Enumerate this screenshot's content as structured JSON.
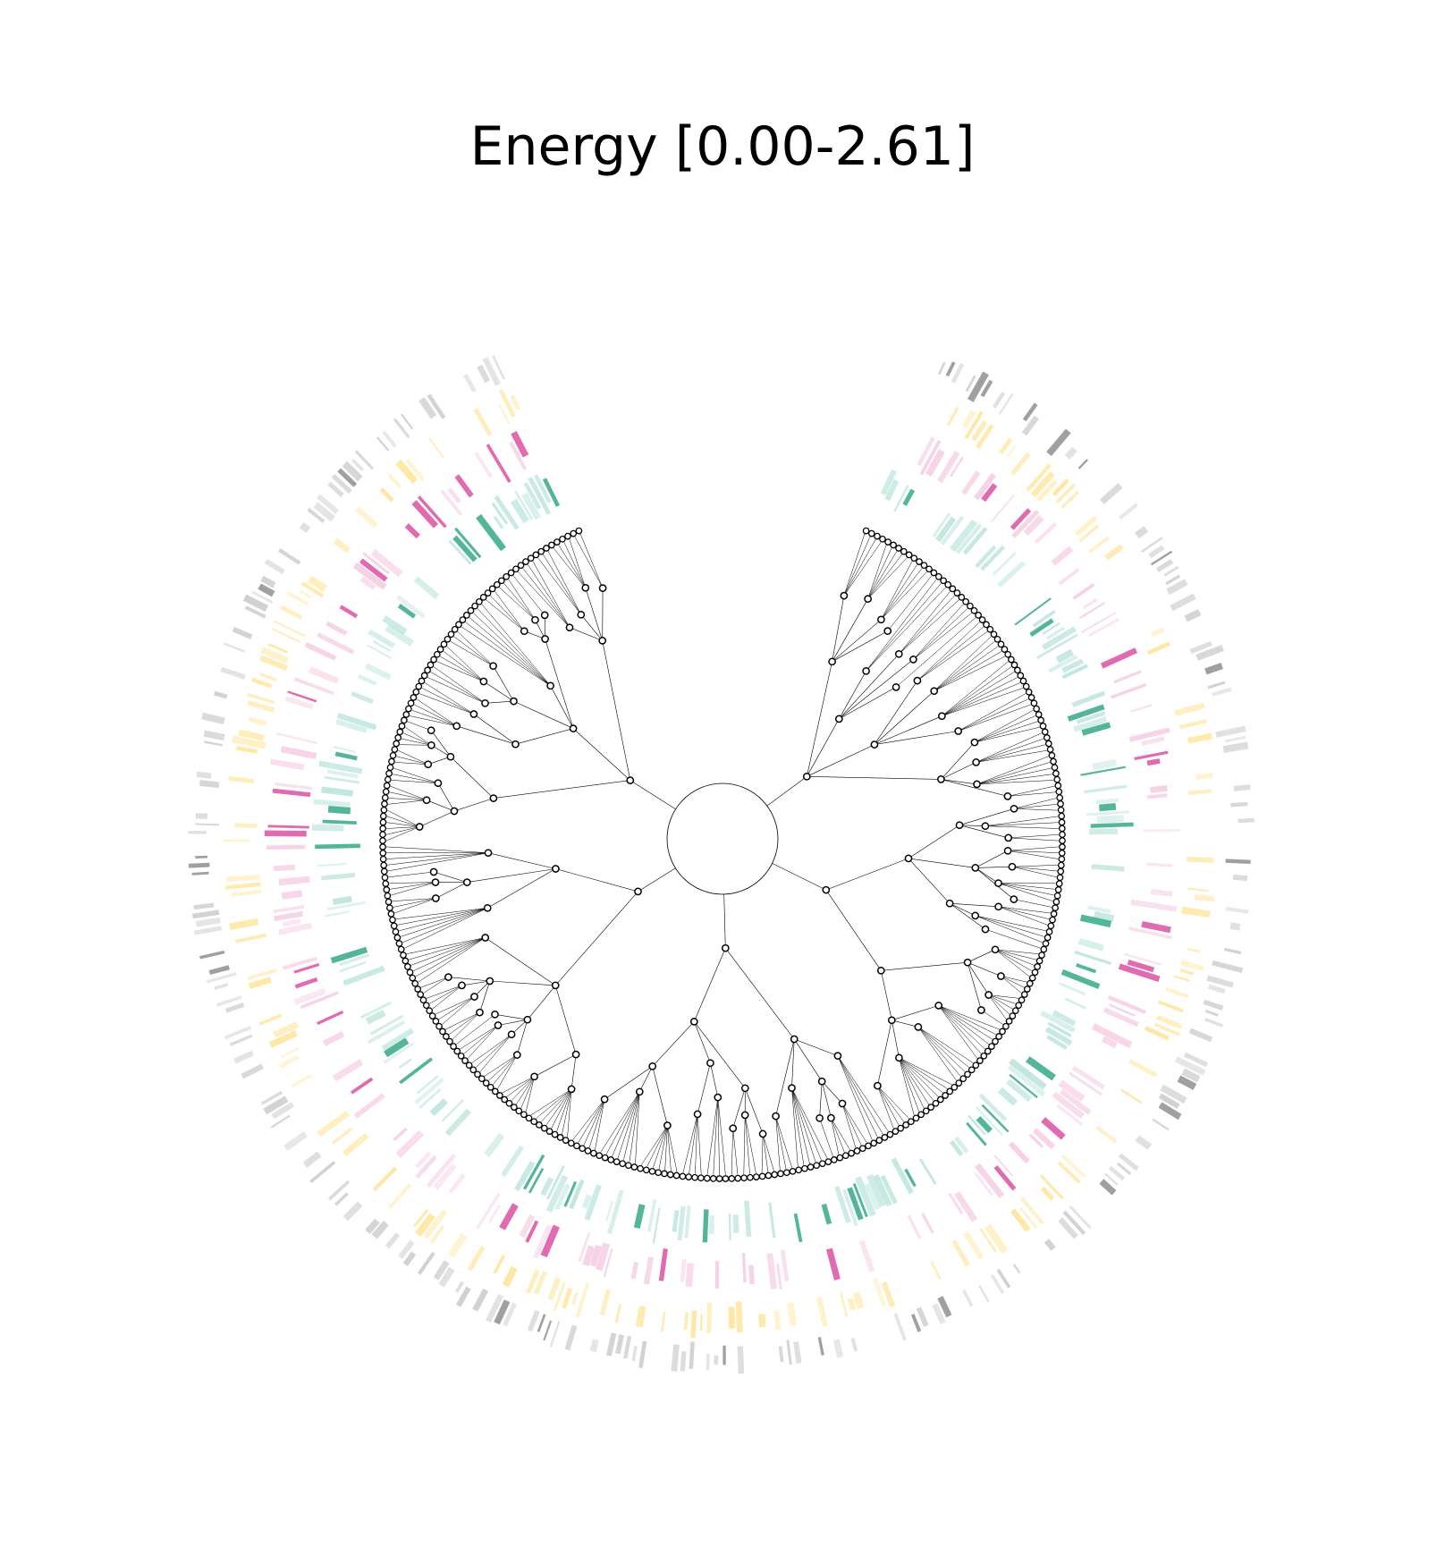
{
  "title": "Energy [0.00-2.61]",
  "colors": {
    "background": "#ffffff",
    "tree_line": "#000000",
    "node_fill": "#ffffff",
    "node_stroke": "#000000",
    "ring_teal": "#1b9e77",
    "ring_teal_light": "#a6dcd0",
    "ring_magenta": "#d63a96",
    "ring_magenta_light": "#f3bcd9",
    "ring_yellow": "#ffe08a",
    "ring_gray": "#808080"
  },
  "diagram": {
    "type": "circular-phylogenetic-tree",
    "ring_tracks": [
      "teal",
      "magenta",
      "yellow",
      "gray"
    ]
  }
}
